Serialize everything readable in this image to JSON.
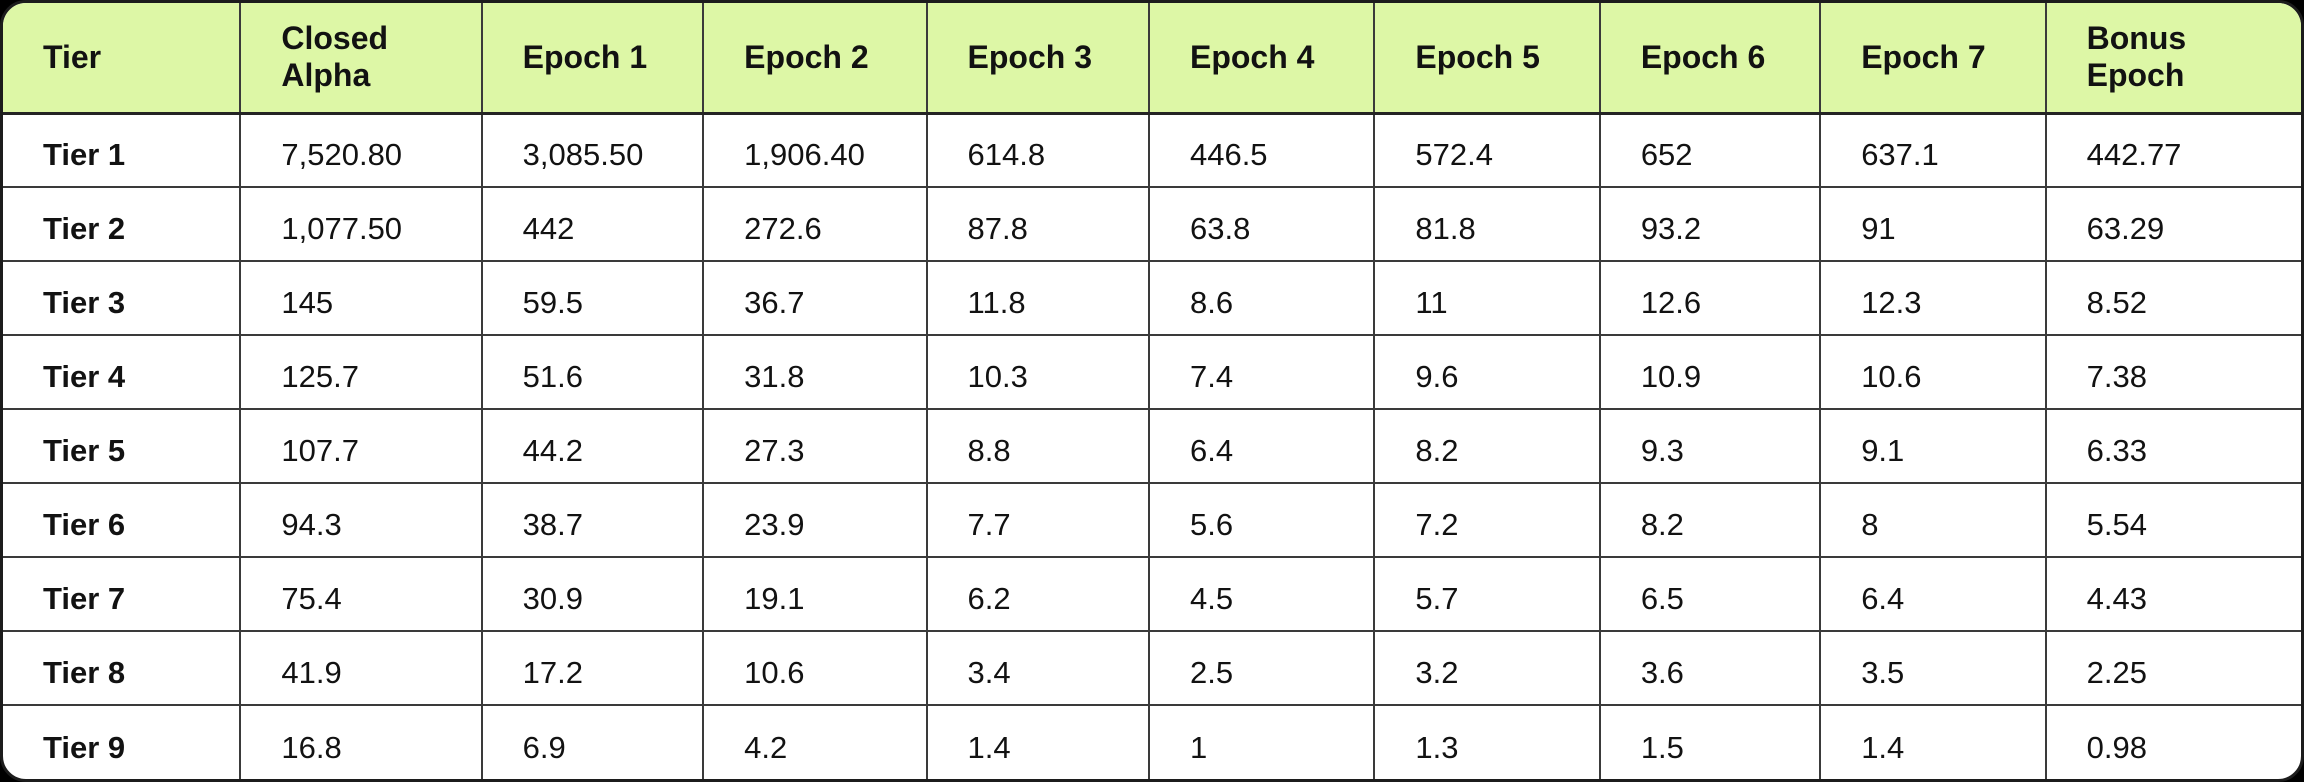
{
  "chart_data": {
    "type": "table",
    "columns": [
      "Tier",
      "Closed Alpha",
      "Epoch 1",
      "Epoch 2",
      "Epoch 3",
      "Epoch 4",
      "Epoch 5",
      "Epoch 6",
      "Epoch 7",
      "Bonus Epoch"
    ],
    "rows": [
      {
        "tier": "Tier 1",
        "values": [
          "7,520.80",
          "3,085.50",
          "1,906.40",
          "614.8",
          "446.5",
          "572.4",
          "652",
          "637.1",
          "442.77"
        ]
      },
      {
        "tier": "Tier 2",
        "values": [
          "1,077.50",
          "442",
          "272.6",
          "87.8",
          "63.8",
          "81.8",
          "93.2",
          "91",
          "63.29"
        ]
      },
      {
        "tier": "Tier 3",
        "values": [
          "145",
          "59.5",
          "36.7",
          "11.8",
          "8.6",
          "11",
          "12.6",
          "12.3",
          "8.52"
        ]
      },
      {
        "tier": "Tier 4",
        "values": [
          "125.7",
          "51.6",
          "31.8",
          "10.3",
          "7.4",
          "9.6",
          "10.9",
          "10.6",
          "7.38"
        ]
      },
      {
        "tier": "Tier 5",
        "values": [
          "107.7",
          "44.2",
          "27.3",
          "8.8",
          "6.4",
          "8.2",
          "9.3",
          "9.1",
          "6.33"
        ]
      },
      {
        "tier": "Tier 6",
        "values": [
          "94.3",
          "38.7",
          "23.9",
          "7.7",
          "5.6",
          "7.2",
          "8.2",
          "8",
          "5.54"
        ]
      },
      {
        "tier": "Tier 7",
        "values": [
          "75.4",
          "30.9",
          "19.1",
          "6.2",
          "4.5",
          "5.7",
          "6.5",
          "6.4",
          "4.43"
        ]
      },
      {
        "tier": "Tier 8",
        "values": [
          "41.9",
          "17.2",
          "10.6",
          "3.4",
          "2.5",
          "3.2",
          "3.6",
          "3.5",
          "2.25"
        ]
      },
      {
        "tier": "Tier 9",
        "values": [
          "16.8",
          "6.9",
          "4.2",
          "1.4",
          "1",
          "1.3",
          "1.5",
          "1.4",
          "0.98"
        ]
      }
    ]
  },
  "colors": {
    "header_bg": "#ddf7a6",
    "border": "#3a3a3a",
    "outer_border": "#1c1c1c",
    "text": "#121212",
    "table_bg": "#ffffff",
    "page_bg": "#000000"
  }
}
